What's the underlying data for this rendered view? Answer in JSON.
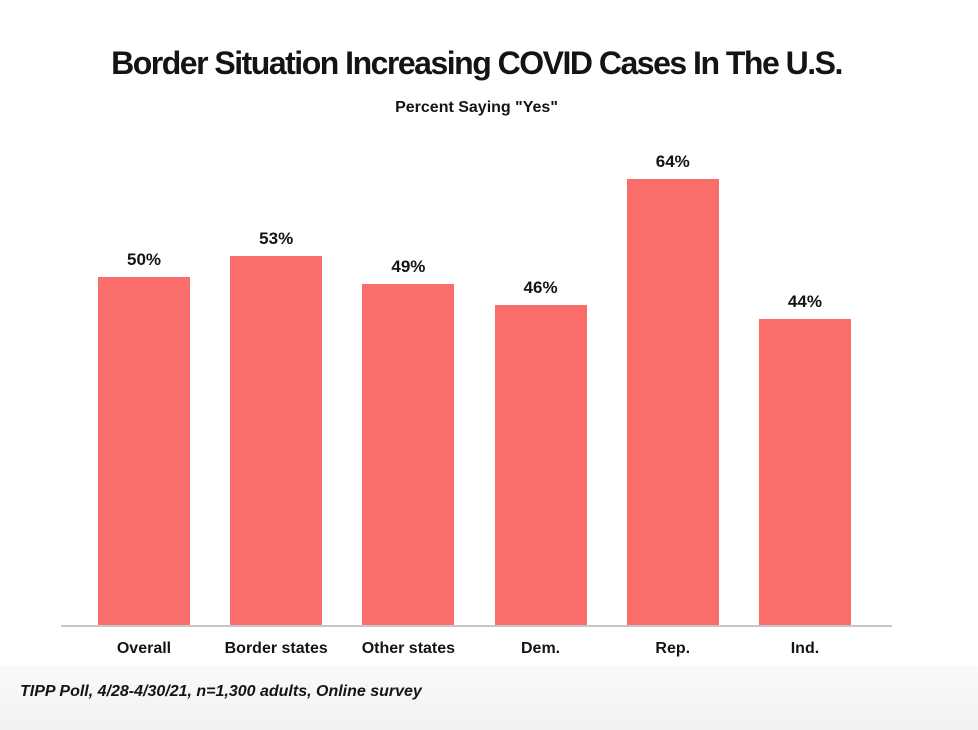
{
  "page": {
    "title": "Border Situation Increasing COVID Cases In The U.S.",
    "subtitle": "Percent Saying \"Yes\"",
    "source_note": "TIPP Poll, 4/28-4/30/21, n=1,300 adults, Online survey"
  },
  "colors": {
    "bar": "#FA6D6A",
    "axis_line": "#C5C5CA",
    "text": "#141414",
    "bottom_band": "#F5F4F4"
  },
  "chart_data": {
    "type": "bar",
    "title": "Border Situation Increasing COVID Cases In The U.S.",
    "subtitle": "Percent Saying \"Yes\"",
    "categories": [
      "Overall",
      "Border states",
      "Other states",
      "Dem.",
      "Rep.",
      "Ind."
    ],
    "values": [
      50,
      53,
      49,
      46,
      64,
      44
    ],
    "value_labels": [
      "50%",
      "53%",
      "49%",
      "46%",
      "64%",
      "44%"
    ],
    "unit": "percent",
    "ylim": [
      0,
      68
    ],
    "grid": false,
    "legend": false,
    "y_axis_shown": false,
    "bar_color": "#FA6D6A",
    "source_note": "TIPP Poll, 4/28-4/30/21, n=1,300 adults, Online survey"
  }
}
